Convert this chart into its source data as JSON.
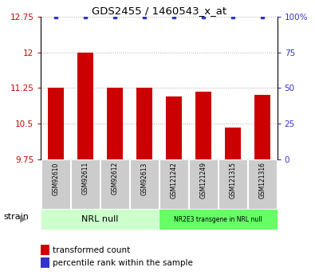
{
  "title": "GDS2455 / 1460543_x_at",
  "samples": [
    "GSM92610",
    "GSM92611",
    "GSM92612",
    "GSM92613",
    "GSM121242",
    "GSM121249",
    "GSM121315",
    "GSM121316"
  ],
  "transformed_counts": [
    11.25,
    12.0,
    11.25,
    11.25,
    11.08,
    11.18,
    10.42,
    11.1
  ],
  "percentile_ranks": [
    100,
    100,
    100,
    100,
    100,
    100,
    100,
    100
  ],
  "ylim_left": [
    9.75,
    12.75
  ],
  "yticks_left": [
    9.75,
    10.5,
    11.25,
    12.0,
    12.75
  ],
  "ytick_labels_left": [
    "9.75",
    "10.5",
    "11.25",
    "12",
    "12.75"
  ],
  "ylim_right": [
    0,
    100
  ],
  "yticks_right": [
    0,
    25,
    50,
    75,
    100
  ],
  "ytick_labels_right": [
    "0",
    "25",
    "50",
    "75",
    "100%"
  ],
  "bar_color": "#cc0000",
  "dot_color": "#3333cc",
  "group1_label": "NRL null",
  "group1_color": "#ccffcc",
  "group2_label": "NR2E3 transgene in NRL null",
  "group2_color": "#66ff66",
  "strain_label": "strain",
  "legend_bar_label": "transformed count",
  "legend_dot_label": "percentile rank within the sample",
  "tick_label_color_left": "#cc0000",
  "tick_label_color_right": "#3333cc",
  "grid_color": "#aaaaaa",
  "base_value": 9.75,
  "bar_width": 0.55
}
